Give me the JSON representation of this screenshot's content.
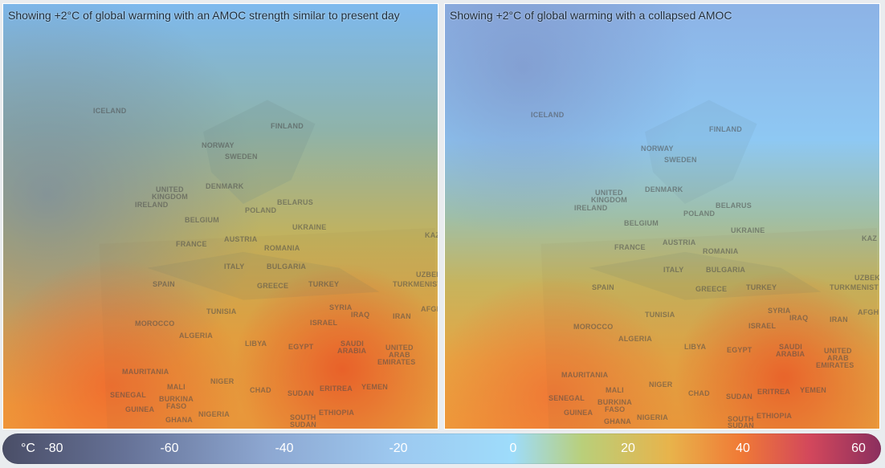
{
  "panels": {
    "present": {
      "caption": "Showing +2°C of global warming with an AMOC strength similar to present day"
    },
    "collapsed": {
      "caption": "Showing +2°C of global warming with a collapsed AMOC"
    }
  },
  "map_labels": {
    "iceland": "ICELAND",
    "finland": "FINLAND",
    "norway": "NORWAY",
    "sweden": "SWEDEN",
    "denmark": "DENMARK",
    "united_kingdom_1": "UNITED",
    "united_kingdom_2": "KINGDOM",
    "ireland": "IRELAND",
    "belarus": "BELARUS",
    "poland": "POLAND",
    "belgium": "BELGIUM",
    "ukraine": "UKRAINE",
    "france": "FRANCE",
    "austria": "AUSTRIA",
    "romania": "ROMANIA",
    "kazakhstan_cut": "KAZ",
    "italy": "ITALY",
    "bulgaria": "BULGARIA",
    "spain": "SPAIN",
    "greece": "GREECE",
    "turkey": "TURKEY",
    "uzbekistan_cut": "UZBEKI",
    "turkmenistan_cut": "TURKMENIST",
    "tunisia": "TUNISIA",
    "syria": "SYRIA",
    "iraq": "IRAQ",
    "iran": "IRAN",
    "afghanistan_cut": "AFGH",
    "morocco": "MOROCCO",
    "israel": "ISRAEL",
    "algeria": "ALGERIA",
    "libya": "LIBYA",
    "egypt": "EGYPT",
    "saudi_1": "SAUDI",
    "saudi_2": "ARABIA",
    "uae_1": "UNITED",
    "uae_2": "ARAB",
    "uae_3": "EMIRATES",
    "mauritania": "MAURITANIA",
    "mali": "MALI",
    "niger": "NIGER",
    "chad": "CHAD",
    "sudan": "SUDAN",
    "eritrea": "ERITREA",
    "yemen": "YEMEN",
    "senegal": "SENEGAL",
    "burkina_1": "BURKINA",
    "burkina_2": "FASO",
    "guinea": "GUINEA",
    "ghana": "GHANA",
    "nigeria": "NIGERIA",
    "south_sudan_1": "SOUTH",
    "south_sudan_2": "SUDAN",
    "ethiopia": "ETHIOPIA"
  },
  "colorbar": {
    "unit": "°C",
    "ticks": [
      "-80",
      "-60",
      "-40",
      "-20",
      "0",
      "20",
      "40",
      "60"
    ],
    "min": -80,
    "max": 60
  },
  "colors": {
    "cold": "#4a4e67",
    "cool": "#8da7d1",
    "zero": "#9edcfb",
    "warm": "#e8b34b",
    "hot": "#f07a36",
    "very_hot": "#8b2f5e"
  }
}
